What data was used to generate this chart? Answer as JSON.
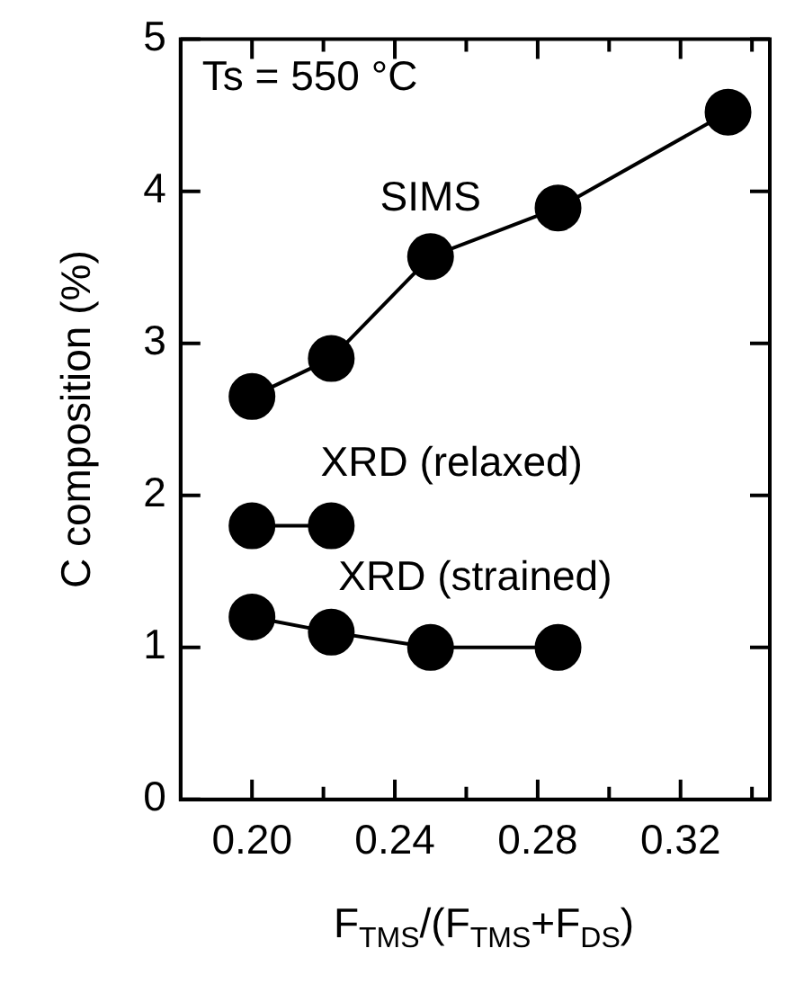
{
  "chart_data": {
    "type": "line",
    "xlabel": "F$_{TMS}$/(F$_{TMS}$+F$_{DS}$)",
    "ylabel": "C composition (%)",
    "annotations": [
      "Ts = 550 °C"
    ],
    "x": [
      0.2,
      0.2222,
      0.25,
      0.2857,
      0.3333
    ],
    "series": [
      {
        "name": "SIMS",
        "color": "#000000",
        "values": [
          2.65,
          2.9,
          3.57,
          3.89,
          4.52
        ]
      },
      {
        "name": "XRD (relaxed)",
        "color": "#000000",
        "values": [
          1.8,
          1.8,
          null,
          null,
          null
        ]
      },
      {
        "name": "XRD (strained)",
        "color": "#000000",
        "values": [
          1.2,
          1.1,
          1.0,
          1.0,
          null
        ]
      }
    ],
    "xlim": [
      0.18,
      0.345
    ],
    "xticks": [
      {
        "value": 0.2,
        "label": "0.20"
      },
      {
        "value": 0.22,
        "label": null
      },
      0.24,
      {
        "value": 0.26,
        "label": null
      },
      0.28,
      {
        "value": 0.3,
        "label": null
      },
      0.32,
      {
        "value": 0.34,
        "label": null
      }
    ],
    "ylim": [
      0,
      5
    ],
    "yticks": [
      0,
      1,
      2,
      3,
      4,
      5
    ],
    "marker": "circle",
    "line_style": "solid",
    "grid": false,
    "legend": false
  }
}
